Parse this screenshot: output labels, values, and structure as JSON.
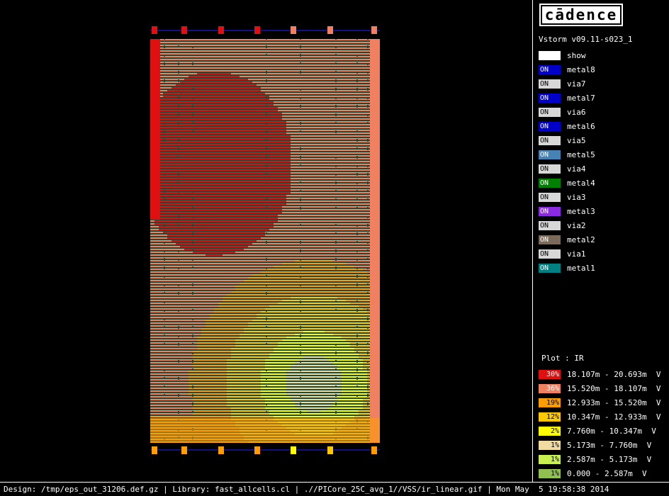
{
  "app": {
    "logo": "cādence",
    "version": "Vstorm v09.11-s023_1"
  },
  "layers": [
    {
      "swatch": "",
      "label": "show",
      "color": "#ffffff",
      "light": true
    },
    {
      "swatch": "ON",
      "label": "metal8",
      "color": "#0000c8",
      "light": false
    },
    {
      "swatch": "ON",
      "label": "via7",
      "color": "#d8d8d8",
      "light": true
    },
    {
      "swatch": "ON",
      "label": "metal7",
      "color": "#0000c8",
      "light": false
    },
    {
      "swatch": "ON",
      "label": "via6",
      "color": "#d8d8d8",
      "light": true
    },
    {
      "swatch": "ON",
      "label": "metal6",
      "color": "#0000c8",
      "light": false
    },
    {
      "swatch": "ON",
      "label": "via5",
      "color": "#d8d8d8",
      "light": true
    },
    {
      "swatch": "ON",
      "label": "metal5",
      "color": "#4682b4",
      "light": false
    },
    {
      "swatch": "ON",
      "label": "via4",
      "color": "#d8d8d8",
      "light": true
    },
    {
      "swatch": "ON",
      "label": "metal4",
      "color": "#008000",
      "light": false
    },
    {
      "swatch": "ON",
      "label": "via3",
      "color": "#d8d8d8",
      "light": true
    },
    {
      "swatch": "ON",
      "label": "metal3",
      "color": "#8a2be2",
      "light": false
    },
    {
      "swatch": "ON",
      "label": "via2",
      "color": "#d8d8d8",
      "light": true
    },
    {
      "swatch": "ON",
      "label": "metal2",
      "color": "#7b6a5a",
      "light": false
    },
    {
      "swatch": "ON",
      "label": "via1",
      "color": "#d8d8d8",
      "light": true
    },
    {
      "swatch": "ON",
      "label": "metal1",
      "color": "#008080",
      "light": false
    }
  ],
  "plot": {
    "title": "Plot : IR",
    "legend": [
      {
        "percent": "30%",
        "range": "18.107m - 20.693m  V",
        "color": "#e01010",
        "light": false
      },
      {
        "percent": "36%",
        "range": "15.520m - 18.107m  V",
        "color": "#f08060",
        "light": false
      },
      {
        "percent": "19%",
        "range": "12.933m - 15.520m  V",
        "color": "#ff9c00",
        "light": true
      },
      {
        "percent": "12%",
        "range": "10.347m - 12.933m  V",
        "color": "#ffc800",
        "light": true
      },
      {
        "percent": "2%",
        "range": "7.760m - 10.347m  V",
        "color": "#ffff00",
        "light": true
      },
      {
        "percent": "1%",
        "range": "5.173m - 7.760m  V",
        "color": "#f0dca0",
        "light": true
      },
      {
        "percent": "1%",
        "range": "2.587m - 5.173m  V",
        "color": "#c8f050",
        "light": true
      },
      {
        "percent": "1%",
        "range": "0.000 - 2.587m  V",
        "color": "#90c050",
        "light": true
      }
    ]
  },
  "status": "Design: /tmp/eps_out_31206.def.gz | Library: fast_allcells.cl | .//PICore_25C_avg_1//VSS/ir_linear.gif | Mon May  5 19:58:38 2014"
}
